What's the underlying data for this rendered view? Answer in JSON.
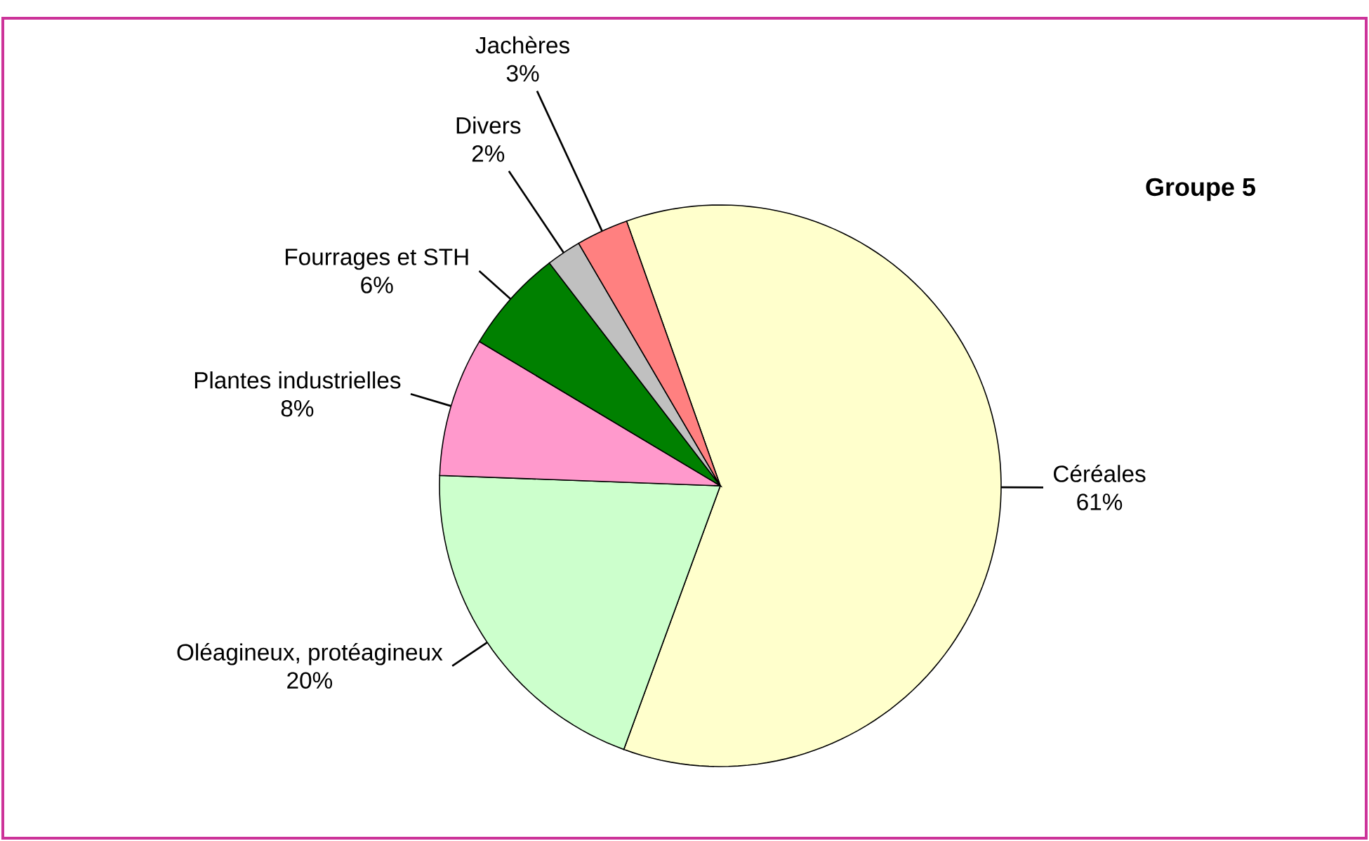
{
  "chart_data": {
    "type": "pie",
    "title": "Groupe 5",
    "categories": [
      "Céréales",
      "Oléagineux, protéagineux",
      "Plantes industrielles",
      "Fourrages et STH",
      "Divers",
      "Jachères"
    ],
    "values": [
      61,
      20,
      8,
      6,
      2,
      3
    ],
    "value_labels": [
      "61%",
      "20%",
      "8%",
      "6%",
      "2%",
      "3%"
    ],
    "colors": [
      "#ffffcc",
      "#ccffcc",
      "#ff99cc",
      "#008000",
      "#c0c0c0",
      "#ff8080"
    ]
  }
}
